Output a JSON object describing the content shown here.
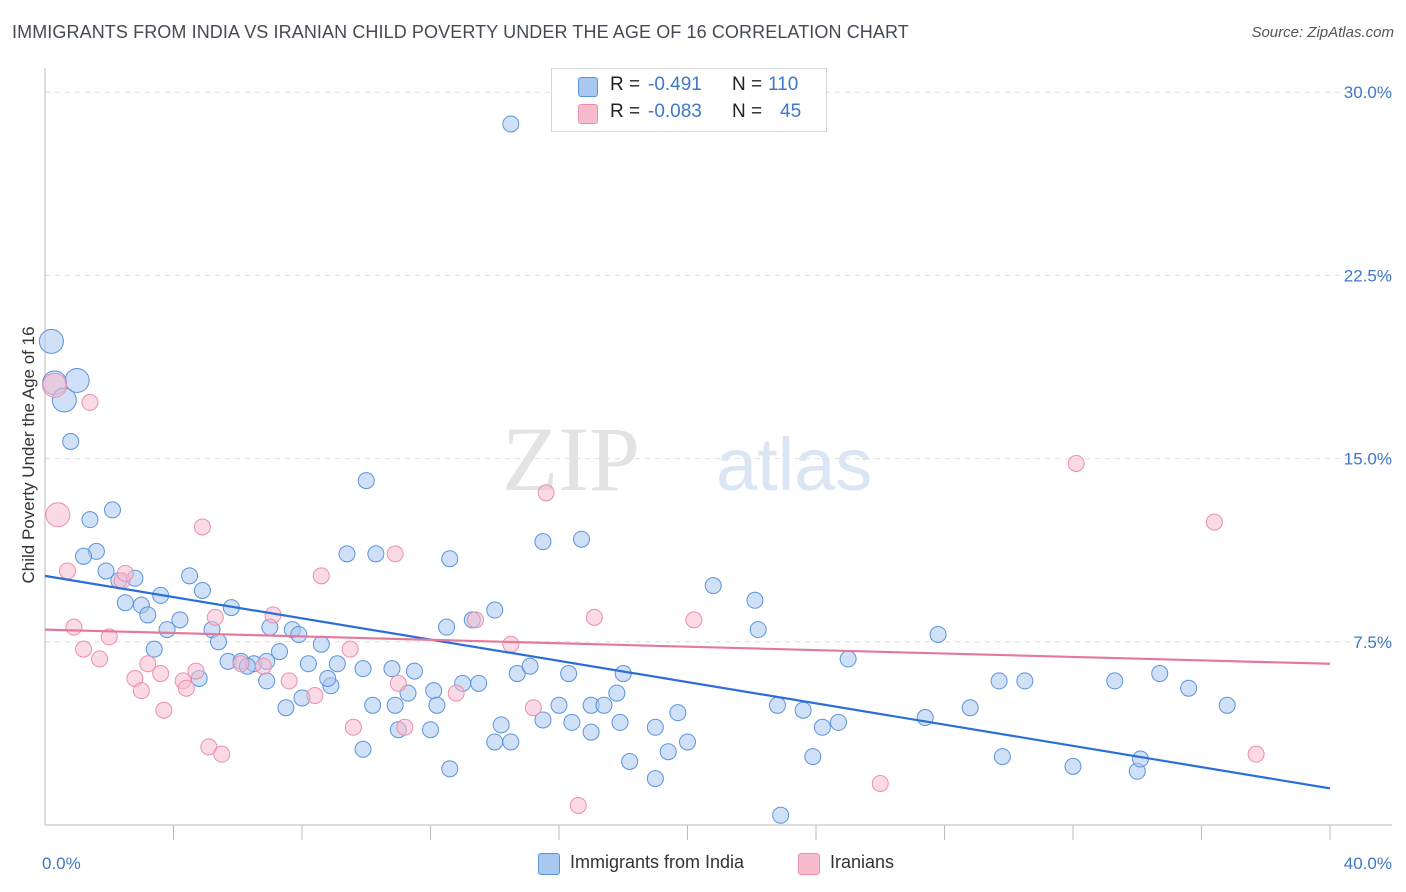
{
  "header": {
    "title": "IMMIGRANTS FROM INDIA VS IRANIAN CHILD POVERTY UNDER THE AGE OF 16 CORRELATION CHART",
    "source": "Source: ZipAtlas.com"
  },
  "watermark": {
    "part1": "ZIP",
    "part2": "atlas"
  },
  "legend_top": {
    "rows": [
      {
        "r_label": "R =",
        "r_value": "-0.491",
        "n_label": "N =",
        "n_value": "110",
        "color": "#a9c8f0"
      },
      {
        "r_label": "R =",
        "r_value": "-0.083",
        "n_label": "N =",
        "n_value": "45",
        "color": "#f6bccd"
      }
    ]
  },
  "legend_bottom": {
    "items": [
      {
        "label": "Immigrants from India",
        "color": "#a9c8f0"
      },
      {
        "label": "Iranians",
        "color": "#f6bccd"
      }
    ]
  },
  "chart_data": {
    "type": "scatter",
    "xlabel": "",
    "ylabel": "Child Poverty Under the Age of 16",
    "xlim": [
      0,
      40
    ],
    "ylim": [
      0,
      30.5
    ],
    "x_tick_labels": [
      {
        "value": 0,
        "label": "0.0%"
      },
      {
        "value": 40,
        "label": "40.0%"
      }
    ],
    "y_tick_labels": [
      {
        "value": 7.5,
        "label": "7.5%"
      },
      {
        "value": 15,
        "label": "15.0%"
      },
      {
        "value": 22.5,
        "label": "22.5%"
      },
      {
        "value": 30,
        "label": "30.0%"
      }
    ],
    "grid": "horizontal dashed",
    "series": [
      {
        "name": "Immigrants from India",
        "color": "#5b93dd",
        "fill": "#a9c8f0",
        "trend": {
          "x": [
            0,
            40
          ],
          "y": [
            10.2,
            1.5
          ],
          "color": "#2b6fd6"
        },
        "points": [
          [
            0.2,
            19.8
          ],
          [
            0.3,
            18.1
          ],
          [
            0.6,
            17.4
          ],
          [
            1.0,
            18.2
          ],
          [
            0.8,
            15.7
          ],
          [
            2.1,
            12.9
          ],
          [
            1.4,
            12.5
          ],
          [
            1.6,
            11.2
          ],
          [
            1.2,
            11.0
          ],
          [
            1.9,
            10.4
          ],
          [
            2.8,
            10.1
          ],
          [
            4.5,
            10.2
          ],
          [
            2.3,
            10.0
          ],
          [
            3.6,
            9.4
          ],
          [
            4.9,
            9.6
          ],
          [
            2.5,
            9.1
          ],
          [
            3.0,
            9.0
          ],
          [
            5.8,
            8.9
          ],
          [
            3.2,
            8.6
          ],
          [
            4.2,
            8.4
          ],
          [
            5.2,
            8.0
          ],
          [
            3.8,
            8.0
          ],
          [
            7.0,
            8.1
          ],
          [
            7.7,
            8.0
          ],
          [
            7.9,
            7.8
          ],
          [
            3.4,
            7.2
          ],
          [
            5.4,
            7.5
          ],
          [
            8.6,
            7.4
          ],
          [
            7.3,
            7.1
          ],
          [
            5.7,
            6.7
          ],
          [
            6.1,
            6.7
          ],
          [
            6.5,
            6.6
          ],
          [
            6.3,
            6.5
          ],
          [
            6.9,
            6.7
          ],
          [
            8.2,
            6.6
          ],
          [
            9.1,
            6.6
          ],
          [
            9.9,
            6.4
          ],
          [
            10.8,
            6.4
          ],
          [
            11.5,
            6.3
          ],
          [
            4.8,
            6.0
          ],
          [
            8.9,
            5.7
          ],
          [
            11.3,
            5.4
          ],
          [
            12.1,
            5.5
          ],
          [
            13.0,
            5.8
          ],
          [
            13.5,
            5.8
          ],
          [
            14.7,
            6.2
          ],
          [
            15.1,
            6.5
          ],
          [
            16.3,
            6.2
          ],
          [
            18.0,
            6.2
          ],
          [
            17.8,
            5.4
          ],
          [
            8.0,
            5.2
          ],
          [
            7.5,
            4.8
          ],
          [
            10.2,
            4.9
          ],
          [
            12.2,
            4.9
          ],
          [
            16.0,
            4.9
          ],
          [
            17.0,
            4.9
          ],
          [
            17.4,
            4.9
          ],
          [
            11.0,
            3.9
          ],
          [
            12.0,
            3.9
          ],
          [
            9.9,
            3.1
          ],
          [
            14.0,
            3.4
          ],
          [
            14.5,
            3.4
          ],
          [
            14.2,
            4.1
          ],
          [
            15.5,
            4.3
          ],
          [
            16.4,
            4.2
          ],
          [
            17.0,
            3.8
          ],
          [
            17.9,
            4.2
          ],
          [
            19.0,
            4.0
          ],
          [
            19.7,
            4.6
          ],
          [
            20.0,
            3.4
          ],
          [
            19.4,
            3.0
          ],
          [
            18.2,
            2.6
          ],
          [
            12.6,
            2.3
          ],
          [
            19.0,
            1.9
          ],
          [
            15.5,
            11.6
          ],
          [
            16.7,
            11.7
          ],
          [
            14.0,
            8.8
          ],
          [
            12.5,
            8.1
          ],
          [
            13.3,
            8.4
          ],
          [
            9.4,
            11.1
          ],
          [
            10.3,
            11.1
          ],
          [
            12.6,
            10.9
          ],
          [
            10.0,
            14.1
          ],
          [
            14.5,
            28.7
          ],
          [
            20.8,
            9.8
          ],
          [
            22.1,
            9.2
          ],
          [
            22.8,
            4.9
          ],
          [
            22.2,
            8.0
          ],
          [
            23.6,
            4.7
          ],
          [
            23.9,
            2.8
          ],
          [
            24.2,
            4.0
          ],
          [
            24.7,
            4.2
          ],
          [
            25.0,
            6.8
          ],
          [
            27.8,
            7.8
          ],
          [
            27.4,
            4.4
          ],
          [
            28.8,
            4.8
          ],
          [
            29.7,
            5.9
          ],
          [
            30.5,
            5.9
          ],
          [
            29.8,
            2.8
          ],
          [
            32.0,
            2.4
          ],
          [
            33.3,
            5.9
          ],
          [
            34.0,
            2.2
          ],
          [
            34.1,
            2.7
          ],
          [
            34.7,
            6.2
          ],
          [
            35.6,
            5.6
          ],
          [
            36.8,
            4.9
          ],
          [
            22.9,
            0.4
          ],
          [
            10.9,
            4.9
          ],
          [
            8.8,
            6.0
          ],
          [
            6.9,
            5.9
          ]
        ]
      },
      {
        "name": "Iranians",
        "color": "#ec8fab",
        "fill": "#f6bccd",
        "trend": {
          "x": [
            0,
            40
          ],
          "y": [
            8.0,
            6.6
          ],
          "color": "#e4799c"
        },
        "points": [
          [
            0.3,
            18.0
          ],
          [
            1.4,
            17.3
          ],
          [
            0.4,
            12.7
          ],
          [
            0.7,
            10.4
          ],
          [
            2.4,
            10.0
          ],
          [
            2.5,
            10.3
          ],
          [
            4.9,
            12.2
          ],
          [
            0.9,
            8.1
          ],
          [
            2.0,
            7.7
          ],
          [
            1.2,
            7.2
          ],
          [
            1.7,
            6.8
          ],
          [
            3.2,
            6.6
          ],
          [
            2.8,
            6.0
          ],
          [
            3.6,
            6.2
          ],
          [
            4.3,
            5.9
          ],
          [
            3.0,
            5.5
          ],
          [
            4.4,
            5.6
          ],
          [
            4.7,
            6.3
          ],
          [
            5.3,
            8.5
          ],
          [
            7.1,
            8.6
          ],
          [
            6.1,
            6.6
          ],
          [
            6.8,
            6.5
          ],
          [
            7.6,
            5.9
          ],
          [
            8.4,
            5.3
          ],
          [
            8.6,
            10.2
          ],
          [
            10.9,
            11.1
          ],
          [
            9.5,
            7.2
          ],
          [
            11.2,
            4.0
          ],
          [
            9.6,
            4.0
          ],
          [
            11.0,
            5.8
          ],
          [
            12.8,
            5.4
          ],
          [
            13.4,
            8.4
          ],
          [
            14.5,
            7.4
          ],
          [
            15.2,
            4.8
          ],
          [
            15.6,
            13.6
          ],
          [
            17.1,
            8.5
          ],
          [
            20.2,
            8.4
          ],
          [
            26.0,
            1.7
          ],
          [
            32.1,
            14.8
          ],
          [
            36.4,
            12.4
          ],
          [
            37.7,
            2.9
          ],
          [
            16.6,
            0.8
          ],
          [
            3.7,
            4.7
          ],
          [
            5.1,
            3.2
          ],
          [
            5.5,
            2.9
          ]
        ]
      }
    ]
  }
}
